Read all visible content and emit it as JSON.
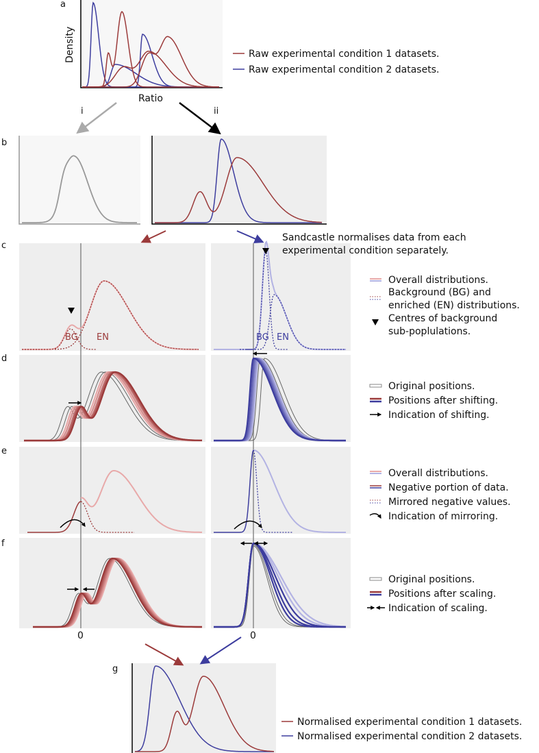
{
  "colors": {
    "red": "#9b3a3a",
    "blue": "#3d3d9e",
    "pink": "#e8a9a9",
    "lightblue": "#b3b3e3",
    "gray": "#999999"
  },
  "panel_labels": [
    "a",
    "b",
    "c",
    "d",
    "e",
    "f",
    "g"
  ],
  "panel_a": {
    "ylabel": "Density",
    "xlabel": "Ratio",
    "legend": [
      "Raw experimental condition 1 datasets.",
      "Raw experimental condition 2 datasets."
    ]
  },
  "arrows": {
    "i": "i",
    "ii": "ii"
  },
  "note": [
    "Sandcastle normalises data from each",
    "experimental condition separately."
  ],
  "panel_c": {
    "bg": "BG",
    "en": "EN",
    "legend": [
      "Overall distributions.",
      "Background (BG) and",
      "enriched (EN) distributions.",
      "Centres of background",
      "sub-poplulations."
    ]
  },
  "panel_d": {
    "legend": [
      "Original positions.",
      "Positions after shifting.",
      "Indication of shifting."
    ]
  },
  "panel_e": {
    "legend": [
      "Overall distributions.",
      "Negative portion of data.",
      "Mirrored negative values.",
      "Indication of mirroring."
    ]
  },
  "panel_f": {
    "legend": [
      "Original positions.",
      "Positions after scaling.",
      "Indication of scaling."
    ]
  },
  "zero_label": "0",
  "panel_g": {
    "legend": [
      "Normalised experimental condition 1 datasets.",
      "Normalised experimental condition 2 datasets."
    ]
  }
}
